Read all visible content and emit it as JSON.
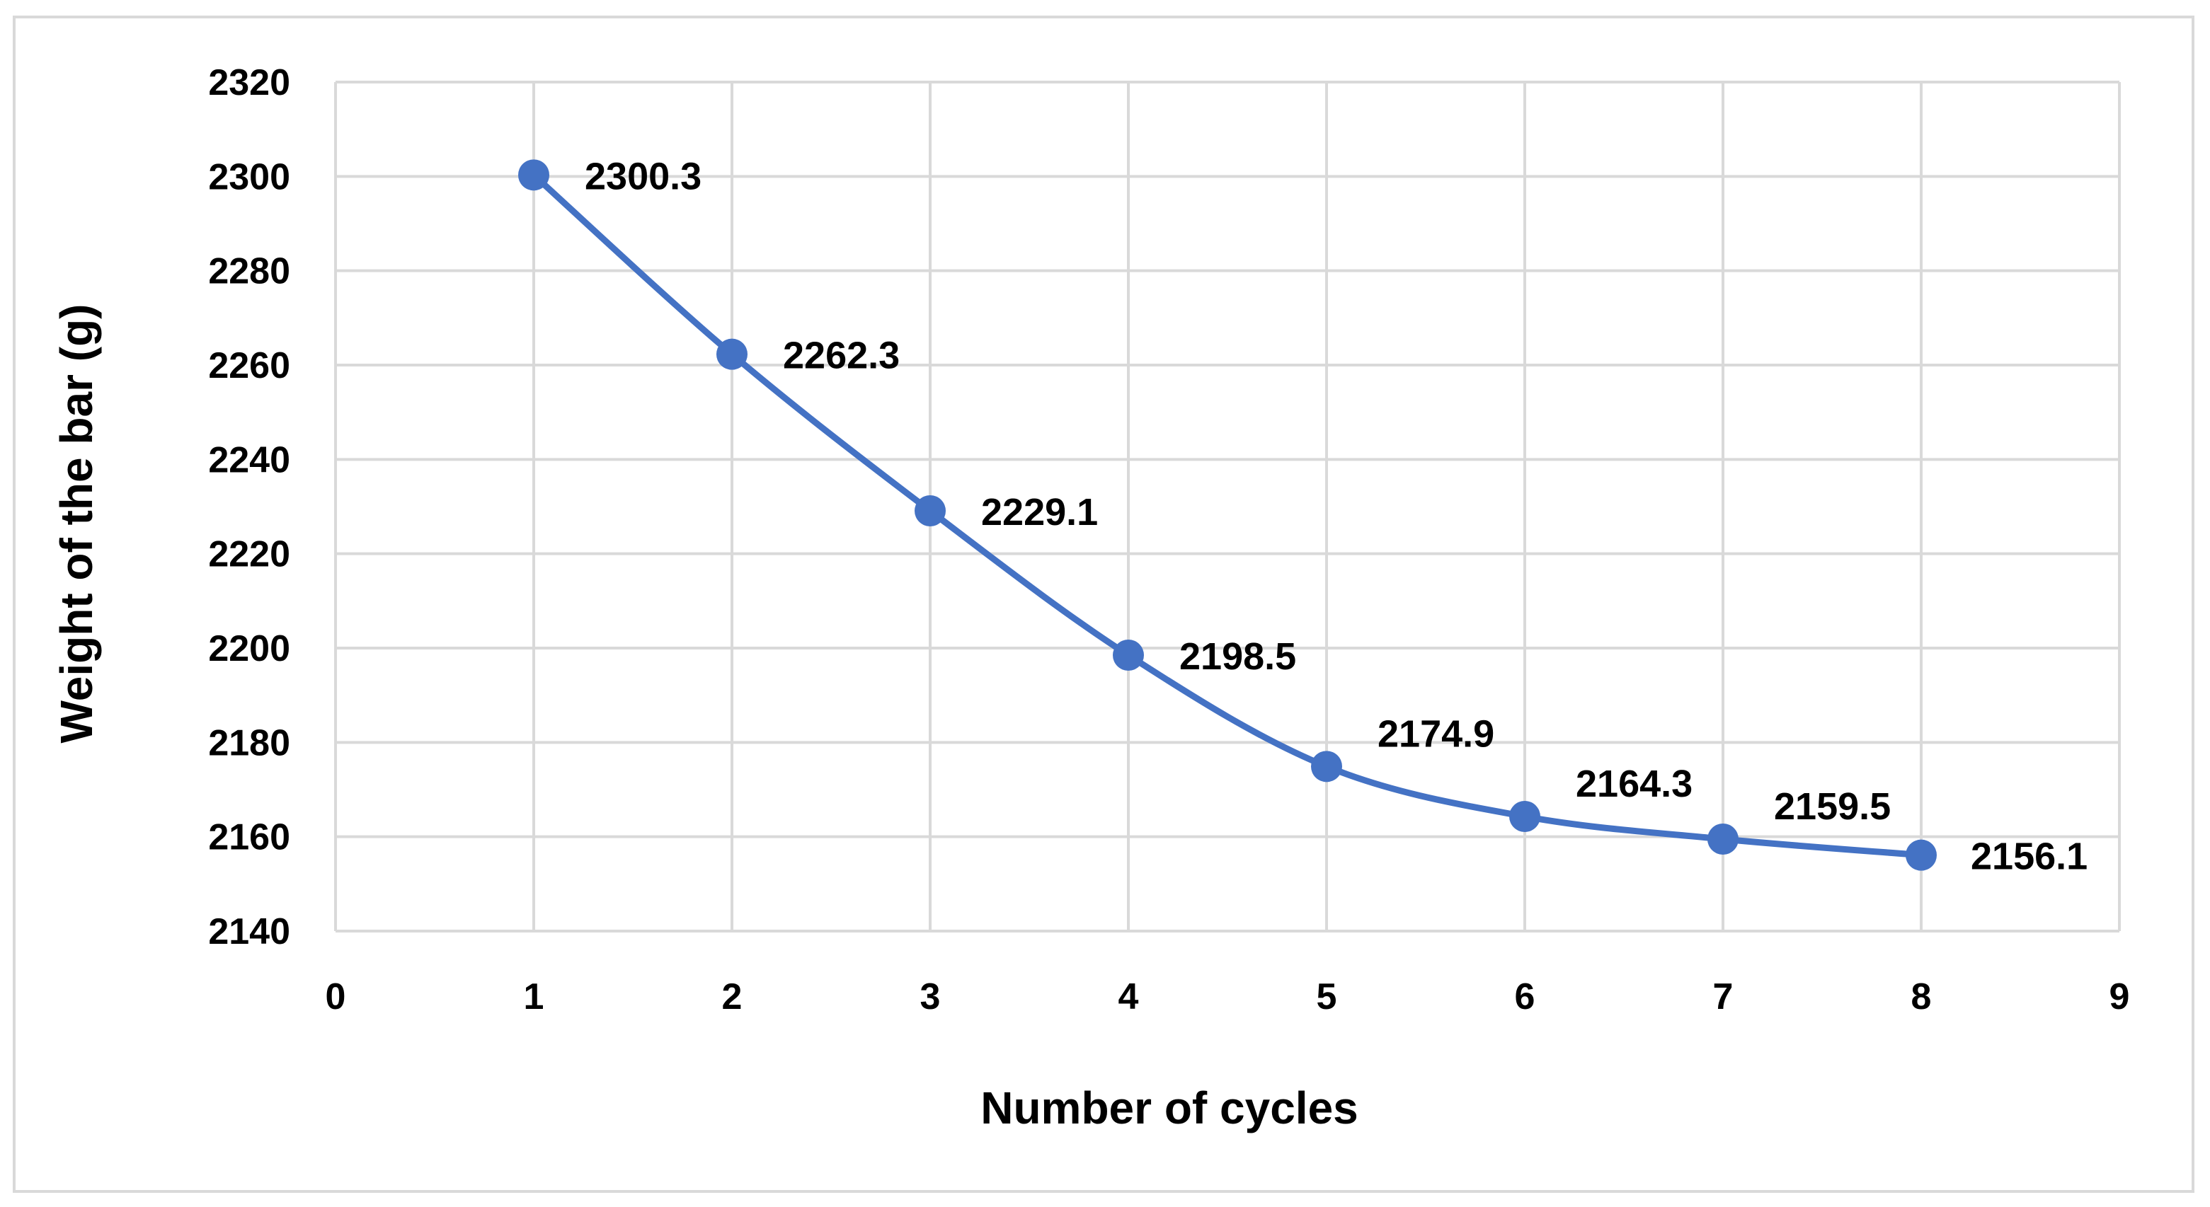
{
  "chart_data": {
    "type": "scatter",
    "title": "",
    "xlabel": "Number of cycles",
    "ylabel": "Weight of the bar (g)",
    "xlim": [
      0,
      9
    ],
    "ylim": [
      2140,
      2320
    ],
    "x_ticks": [
      0,
      1,
      2,
      3,
      4,
      5,
      6,
      7,
      8,
      9
    ],
    "y_ticks": [
      2140,
      2160,
      2180,
      2200,
      2220,
      2240,
      2260,
      2280,
      2300,
      2320
    ],
    "grid": true,
    "legend": "none",
    "line_style": "smooth",
    "series_color": "#4472c4",
    "gridline_color": "#d9d9d9",
    "series": [
      {
        "x": [
          1,
          2,
          3,
          4,
          5,
          6,
          7,
          8
        ],
        "y": [
          2300.3,
          2262.3,
          2229.1,
          2198.5,
          2174.9,
          2164.3,
          2159.5,
          2156.1
        ],
        "data_labels": [
          "2300.3",
          "2262.3",
          "2229.1",
          "2198.5",
          "2174.9",
          "2164.3",
          "2159.5",
          "2156.1"
        ]
      }
    ]
  }
}
